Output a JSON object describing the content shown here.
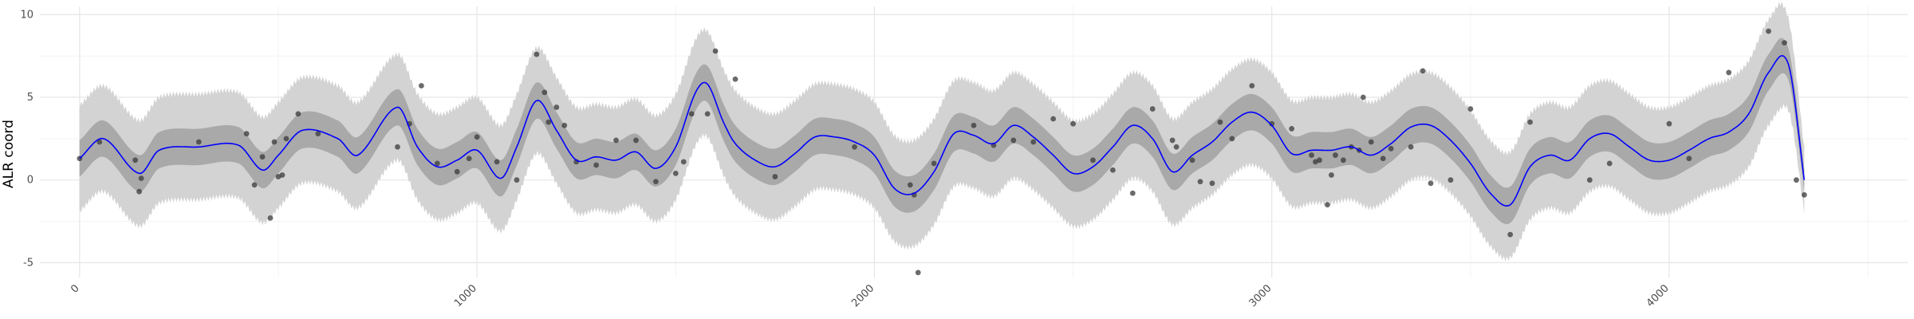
{
  "chart_data": {
    "type": "line",
    "title": "",
    "xlabel": "",
    "ylabel": "ALR coord",
    "xlim": [
      -100,
      4600
    ],
    "ylim": [
      -5.9,
      10.5
    ],
    "x_ticks": [
      0,
      1000,
      2000,
      3000,
      4000
    ],
    "x_tick_labels": [
      "0",
      "1000",
      "2000",
      "3000",
      "4000"
    ],
    "y_ticks": [
      -5,
      0,
      5,
      10
    ],
    "y_tick_labels": [
      "-5",
      "0",
      "5",
      "10"
    ],
    "grid": true,
    "legend": "none",
    "colors": {
      "mean_line": "#0000ff",
      "outer_band": "#d3d3d3",
      "inner_band": "#a9a9a9",
      "points": "#3a3a3a",
      "grid_major": "#e6e6e6",
      "grid_minor": "#f3f3f3"
    },
    "mean": {
      "x": [
        0,
        60,
        150,
        200,
        300,
        400,
        460,
        500,
        560,
        650,
        700,
        800,
        850,
        900,
        950,
        1000,
        1060,
        1100,
        1150,
        1200,
        1250,
        1300,
        1350,
        1400,
        1450,
        1500,
        1550,
        1580,
        1620,
        1650,
        1700,
        1750,
        1800,
        1850,
        1900,
        1950,
        2000,
        2050,
        2100,
        2150,
        2200,
        2250,
        2300,
        2350,
        2400,
        2450,
        2500,
        2550,
        2600,
        2650,
        2700,
        2750,
        2800,
        2850,
        2900,
        2950,
        3000,
        3050,
        3100,
        3150,
        3200,
        3250,
        3300,
        3350,
        3400,
        3450,
        3500,
        3550,
        3600,
        3650,
        3700,
        3750,
        3800,
        3850,
        3900,
        3950,
        4000,
        4050,
        4100,
        4150,
        4200,
        4250,
        4300,
        4340
      ],
      "y": [
        1.3,
        2.5,
        0.4,
        1.8,
        2.0,
        2.1,
        0.6,
        1.5,
        3.0,
        2.5,
        1.5,
        4.4,
        2.0,
        0.8,
        1.2,
        1.8,
        0.1,
        2.0,
        4.8,
        3.0,
        1.2,
        1.4,
        1.2,
        1.7,
        0.7,
        2.0,
        5.3,
        5.8,
        3.5,
        2.2,
        1.2,
        0.8,
        1.6,
        2.6,
        2.6,
        2.3,
        1.5,
        -0.5,
        -0.8,
        0.5,
        2.8,
        2.7,
        2.2,
        3.3,
        2.6,
        1.5,
        0.4,
        0.8,
        2.0,
        3.3,
        2.5,
        0.5,
        1.5,
        2.3,
        3.5,
        4.1,
        3.3,
        1.6,
        1.8,
        1.8,
        2.0,
        1.5,
        2.2,
        3.2,
        3.3,
        2.4,
        1.0,
        -0.8,
        -1.5,
        0.8,
        1.5,
        1.2,
        2.5,
        2.8,
        2.0,
        1.2,
        1.2,
        1.8,
        2.5,
        2.9,
        4.0,
        6.5,
        7.0,
        0.0
      ]
    },
    "inner_band_halfwidth": 1.1,
    "outer_band_halfwidth": 3.2,
    "points": {
      "x": [
        0,
        50,
        140,
        150,
        155,
        300,
        420,
        440,
        460,
        480,
        490,
        500,
        510,
        520,
        550,
        600,
        800,
        830,
        860,
        900,
        950,
        980,
        1000,
        1050,
        1100,
        1150,
        1170,
        1180,
        1200,
        1220,
        1250,
        1300,
        1350,
        1400,
        1450,
        1500,
        1520,
        1540,
        1580,
        1600,
        1650,
        1750,
        1950,
        2090,
        2100,
        2110,
        2150,
        2250,
        2300,
        2350,
        2400,
        2450,
        2500,
        2550,
        2600,
        2650,
        2700,
        2750,
        2760,
        2800,
        2820,
        2850,
        2870,
        2900,
        2950,
        3000,
        3050,
        3100,
        3110,
        3120,
        3140,
        3150,
        3160,
        3180,
        3200,
        3220,
        3230,
        3250,
        3280,
        3300,
        3350,
        3380,
        3400,
        3450,
        3500,
        3600,
        3650,
        3800,
        3850,
        4000,
        4050,
        4150,
        4250,
        4290,
        4320,
        4340
      ],
      "y": [
        1.3,
        2.3,
        1.2,
        -0.7,
        0.1,
        2.3,
        2.8,
        -0.3,
        1.4,
        -2.3,
        2.3,
        0.2,
        0.3,
        2.5,
        4.0,
        2.8,
        2.0,
        3.4,
        5.7,
        1.0,
        0.5,
        1.3,
        2.6,
        1.1,
        0.0,
        7.6,
        5.3,
        3.5,
        4.4,
        3.3,
        1.1,
        0.9,
        2.4,
        2.4,
        -0.1,
        0.4,
        1.1,
        4.0,
        4.0,
        7.8,
        6.1,
        0.2,
        2.0,
        -0.3,
        -0.9,
        -5.6,
        1.0,
        3.3,
        2.1,
        2.4,
        2.3,
        3.7,
        3.4,
        1.2,
        0.6,
        -0.8,
        4.3,
        2.4,
        2.0,
        1.2,
        -0.1,
        -0.2,
        3.5,
        2.5,
        5.7,
        3.4,
        3.1,
        1.5,
        1.1,
        1.2,
        -1.5,
        0.3,
        1.5,
        1.2,
        2.0,
        1.8,
        5.0,
        2.3,
        1.3,
        1.9,
        2.0,
        6.6,
        -0.2,
        0.0,
        4.3,
        -3.3,
        3.5,
        0.0,
        1.0,
        3.4,
        1.3,
        6.5,
        9.0,
        8.3,
        0.0,
        -0.9
      ]
    }
  }
}
